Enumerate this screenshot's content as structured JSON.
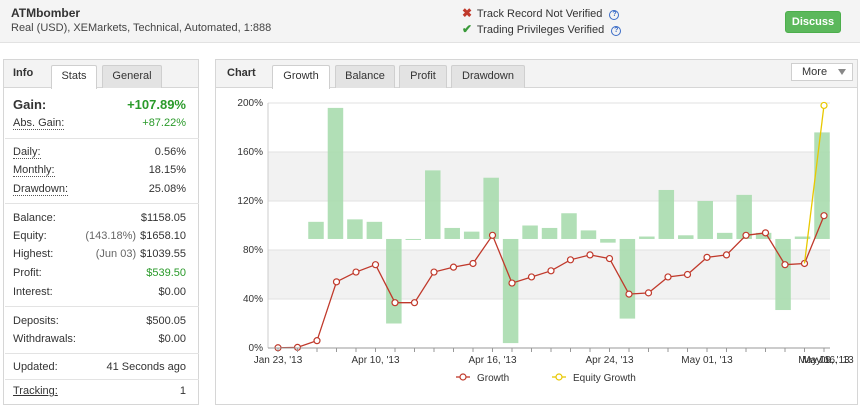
{
  "header": {
    "system_name": "ATMbomber",
    "description": "Real (USD), XEMarkets, Technical, Automated, 1:888",
    "track_record": "Track Record Not Verified",
    "trading_privileges": "Trading Privileges Verified",
    "discuss_label": "Discuss",
    "colors": {
      "not_verified": "#c0392b",
      "verified": "#3a9a3a",
      "discuss": "#5cb85c"
    }
  },
  "info_panel": {
    "tabs": [
      "Info",
      "Stats",
      "General"
    ],
    "active_tab": "Info",
    "gain": {
      "label": "Gain:",
      "value": "+107.89%"
    },
    "abs_gain": {
      "label": "Abs. Gain:",
      "value": "+87.22%"
    },
    "daily": {
      "label": "Daily:",
      "value": "0.56%"
    },
    "monthly": {
      "label": "Monthly:",
      "value": "18.15%"
    },
    "drawdown": {
      "label": "Drawdown:",
      "value": "25.08%"
    },
    "balance": {
      "label": "Balance:",
      "value": "$1158.05"
    },
    "equity": {
      "label": "Equity:",
      "sub": "(143.18%)",
      "value": "$1658.10"
    },
    "highest": {
      "label": "Highest:",
      "sub": "(Jun 03)",
      "value": "$1039.55"
    },
    "profit": {
      "label": "Profit:",
      "value": "$539.50"
    },
    "interest": {
      "label": "Interest:",
      "value": "$0.00"
    },
    "deposits": {
      "label": "Deposits:",
      "value": "$500.05"
    },
    "withdrawals": {
      "label": "Withdrawals:",
      "value": "$0.00"
    },
    "updated": {
      "label": "Updated:",
      "value": "41 Seconds ago"
    },
    "tracking": {
      "label": "Tracking:",
      "value": "1"
    }
  },
  "chart_panel": {
    "tabs": [
      "Chart",
      "Growth",
      "Balance",
      "Profit",
      "Drawdown"
    ],
    "active_tab": "Growth",
    "more_label": "More"
  },
  "chart_data": {
    "type": "line",
    "y_ticks": [
      "0%",
      "40%",
      "80%",
      "120%",
      "160%",
      "200%"
    ],
    "ylim": [
      0,
      200
    ],
    "x_tick_labels": [
      "Jan 23, '13",
      "Apr 10, '13",
      "Apr 16, '13",
      "Apr 24, '13",
      "May 01, '13",
      "May 09, '13",
      "May 16, '13",
      "Ju..."
    ],
    "x_tick_indices": [
      0,
      5,
      11,
      17,
      22,
      28,
      34,
      40
    ],
    "grid": true,
    "legend_position": "bottom",
    "colors": {
      "growth": "#c0392b",
      "equity": "#e8c800",
      "bars": "#a8dcae"
    },
    "series": [
      {
        "name": "Growth",
        "type": "line",
        "values": [
          0.2,
          0.5,
          6,
          54,
          62,
          68,
          37,
          37,
          62,
          66,
          69,
          92,
          53,
          58,
          63,
          72,
          76,
          73,
          44,
          45,
          58,
          60,
          74,
          76,
          92,
          94,
          68,
          69,
          108
        ]
      },
      {
        "name": "Equity Growth",
        "type": "line",
        "points": [
          [
            27,
            69
          ],
          [
            28,
            198
          ]
        ]
      },
      {
        "name": "Daily gain",
        "type": "bar",
        "baseline": 89,
        "values": [
          103,
          196,
          105,
          103,
          20,
          89,
          145,
          98,
          95,
          139,
          4,
          100,
          98,
          110,
          96,
          86,
          24,
          91,
          129,
          92,
          120,
          94,
          125,
          94,
          31,
          91,
          176
        ]
      }
    ]
  }
}
